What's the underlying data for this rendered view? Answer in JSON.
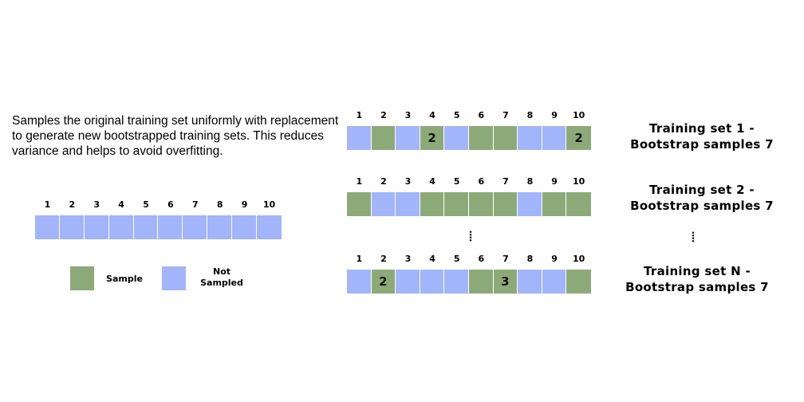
{
  "description": "Samples the original training set uniformly with replacement to generate new bootstrapped training sets. This reduces variance and helps to avoid overfitting.",
  "colors": {
    "sampled": "#8caa78",
    "not_sampled": "#a2b5fa"
  },
  "original": {
    "indices": [
      "1",
      "2",
      "3",
      "4",
      "5",
      "6",
      "7",
      "8",
      "9",
      "10"
    ]
  },
  "legend": {
    "sample": "Sample",
    "not_sampled": "Not Sampled"
  },
  "training_sets": [
    {
      "label_line1": "Training set 1 -",
      "label_line2": "Bootstrap samples 7",
      "indices": [
        "1",
        "2",
        "3",
        "4",
        "5",
        "6",
        "7",
        "8",
        "9",
        "10"
      ],
      "cells": [
        {
          "sampled": false,
          "count": ""
        },
        {
          "sampled": true,
          "count": ""
        },
        {
          "sampled": false,
          "count": ""
        },
        {
          "sampled": true,
          "count": "2"
        },
        {
          "sampled": false,
          "count": ""
        },
        {
          "sampled": true,
          "count": ""
        },
        {
          "sampled": true,
          "count": ""
        },
        {
          "sampled": false,
          "count": ""
        },
        {
          "sampled": false,
          "count": ""
        },
        {
          "sampled": true,
          "count": "2"
        }
      ]
    },
    {
      "label_line1": "Training set 2 -",
      "label_line2": "Bootstrap samples 7",
      "indices": [
        "1",
        "2",
        "3",
        "4",
        "5",
        "6",
        "7",
        "8",
        "9",
        "10"
      ],
      "cells": [
        {
          "sampled": true,
          "count": ""
        },
        {
          "sampled": false,
          "count": ""
        },
        {
          "sampled": false,
          "count": ""
        },
        {
          "sampled": true,
          "count": ""
        },
        {
          "sampled": true,
          "count": ""
        },
        {
          "sampled": true,
          "count": ""
        },
        {
          "sampled": true,
          "count": ""
        },
        {
          "sampled": false,
          "count": ""
        },
        {
          "sampled": true,
          "count": ""
        },
        {
          "sampled": true,
          "count": ""
        }
      ]
    },
    {
      "label_line1": "Training set N -",
      "label_line2": "Bootstrap samples 7",
      "indices": [
        "1",
        "2",
        "3",
        "4",
        "5",
        "6",
        "7",
        "8",
        "9",
        "10"
      ],
      "cells": [
        {
          "sampled": false,
          "count": ""
        },
        {
          "sampled": true,
          "count": "2"
        },
        {
          "sampled": false,
          "count": ""
        },
        {
          "sampled": false,
          "count": ""
        },
        {
          "sampled": false,
          "count": ""
        },
        {
          "sampled": true,
          "count": ""
        },
        {
          "sampled": true,
          "count": "3"
        },
        {
          "sampled": false,
          "count": ""
        },
        {
          "sampled": false,
          "count": ""
        },
        {
          "sampled": true,
          "count": ""
        }
      ]
    }
  ]
}
